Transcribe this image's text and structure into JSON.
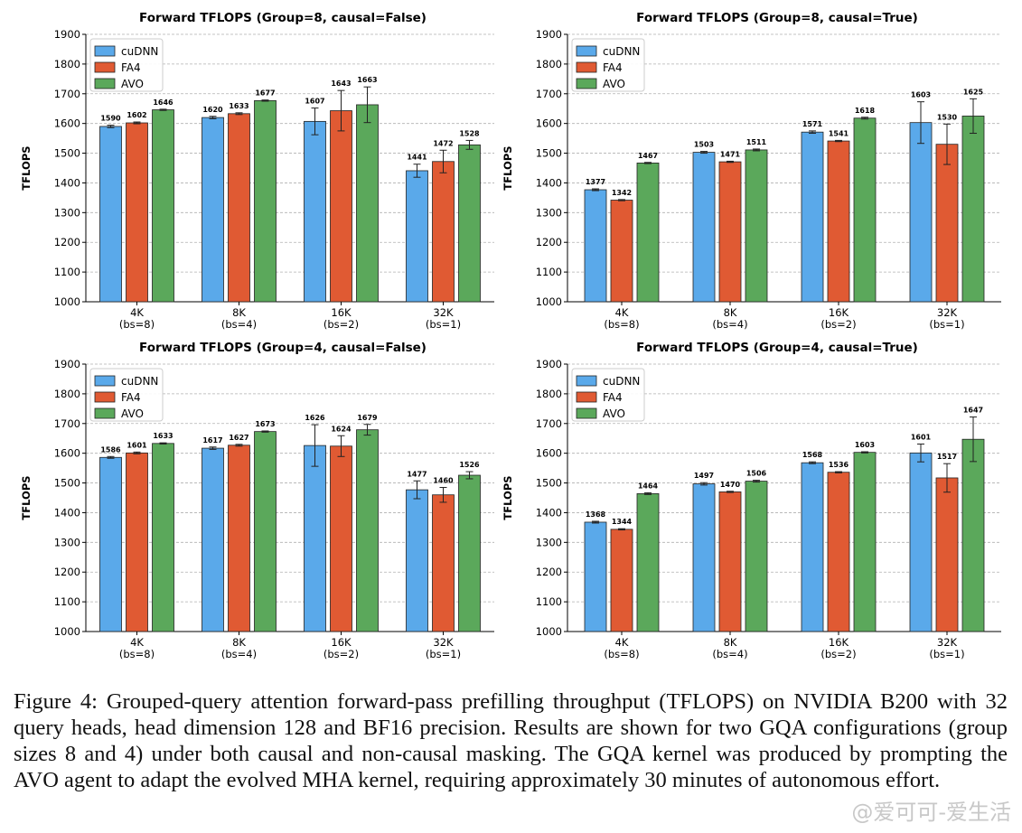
{
  "colors": {
    "cuDNN": "#5aa9ea",
    "FA4": "#e05a33",
    "AVO": "#5ba85b"
  },
  "chart_data": [
    {
      "type": "bar",
      "title": "Forward TFLOPS (Group=8, causal=False)",
      "ylabel": "TFLOPS",
      "ylim": [
        1000,
        1900
      ],
      "yticks": [
        1000,
        1100,
        1200,
        1300,
        1400,
        1500,
        1600,
        1700,
        1800,
        1900
      ],
      "categories": [
        "4K",
        "8K",
        "16K",
        "32K"
      ],
      "sublabels": [
        "(bs=8)",
        "(bs=4)",
        "(bs=2)",
        "(bs=1)"
      ],
      "series": [
        {
          "name": "cuDNN",
          "values": [
            1590,
            1620,
            1607,
            1441
          ],
          "errors": [
            4,
            4,
            45,
            22
          ]
        },
        {
          "name": "FA4",
          "values": [
            1602,
            1633,
            1643,
            1472
          ],
          "errors": [
            3,
            3,
            68,
            38
          ]
        },
        {
          "name": "AVO",
          "values": [
            1646,
            1677,
            1663,
            1528
          ],
          "errors": [
            2,
            2,
            60,
            15
          ]
        }
      ],
      "legend": "top-left",
      "grid": true
    },
    {
      "type": "bar",
      "title": "Forward TFLOPS (Group=8, causal=True)",
      "ylabel": "TFLOPS",
      "ylim": [
        1000,
        1900
      ],
      "yticks": [
        1000,
        1100,
        1200,
        1300,
        1400,
        1500,
        1600,
        1700,
        1800,
        1900
      ],
      "categories": [
        "4K",
        "8K",
        "16K",
        "32K"
      ],
      "sublabels": [
        "(bs=8)",
        "(bs=4)",
        "(bs=2)",
        "(bs=1)"
      ],
      "series": [
        {
          "name": "cuDNN",
          "values": [
            1377,
            1503,
            1571,
            1603
          ],
          "errors": [
            3,
            3,
            4,
            70
          ]
        },
        {
          "name": "FA4",
          "values": [
            1342,
            1471,
            1541,
            1530
          ],
          "errors": [
            2,
            2,
            2,
            68
          ]
        },
        {
          "name": "AVO",
          "values": [
            1467,
            1511,
            1618,
            1625
          ],
          "errors": [
            2,
            3,
            3,
            58
          ]
        }
      ],
      "legend": "top-left",
      "grid": true
    },
    {
      "type": "bar",
      "title": "Forward TFLOPS (Group=4, causal=False)",
      "ylabel": "TFLOPS",
      "ylim": [
        1000,
        1900
      ],
      "yticks": [
        1000,
        1100,
        1200,
        1300,
        1400,
        1500,
        1600,
        1700,
        1800,
        1900
      ],
      "categories": [
        "4K",
        "8K",
        "16K",
        "32K"
      ],
      "sublabels": [
        "(bs=8)",
        "(bs=4)",
        "(bs=2)",
        "(bs=1)"
      ],
      "series": [
        {
          "name": "cuDNN",
          "values": [
            1586,
            1617,
            1626,
            1477
          ],
          "errors": [
            3,
            4,
            70,
            30
          ]
        },
        {
          "name": "FA4",
          "values": [
            1601,
            1627,
            1624,
            1460
          ],
          "errors": [
            3,
            3,
            35,
            25
          ]
        },
        {
          "name": "AVO",
          "values": [
            1633,
            1673,
            1679,
            1526
          ],
          "errors": [
            2,
            2,
            18,
            12
          ]
        }
      ],
      "legend": "top-left",
      "grid": true
    },
    {
      "type": "bar",
      "title": "Forward TFLOPS (Group=4, causal=True)",
      "ylabel": "TFLOPS",
      "ylim": [
        1000,
        1900
      ],
      "yticks": [
        1000,
        1100,
        1200,
        1300,
        1400,
        1500,
        1600,
        1700,
        1800,
        1900
      ],
      "categories": [
        "4K",
        "8K",
        "16K",
        "32K"
      ],
      "sublabels": [
        "(bs=8)",
        "(bs=4)",
        "(bs=2)",
        "(bs=1)"
      ],
      "series": [
        {
          "name": "cuDNN",
          "values": [
            1368,
            1497,
            1568,
            1601
          ],
          "errors": [
            3,
            4,
            3,
            30
          ]
        },
        {
          "name": "FA4",
          "values": [
            1344,
            1470,
            1536,
            1517
          ],
          "errors": [
            2,
            2,
            2,
            48
          ]
        },
        {
          "name": "AVO",
          "values": [
            1464,
            1506,
            1603,
            1647
          ],
          "errors": [
            3,
            3,
            2,
            75
          ]
        }
      ],
      "legend": "top-left",
      "grid": true
    }
  ],
  "caption": "Figure 4: Grouped-query attention forward-pass prefilling throughput (TFLOPS) on NVIDIA B200 with 32 query heads, head dimension 128 and BF16 precision. Results are shown for two GQA configurations (group sizes 8 and 4) under both causal and non-causal masking. The GQA kernel was produced by prompting the AVO agent to adapt the evolved MHA kernel, requiring approximately 30 minutes of autonomous effort.",
  "watermark": "@爱可可-爱生活"
}
